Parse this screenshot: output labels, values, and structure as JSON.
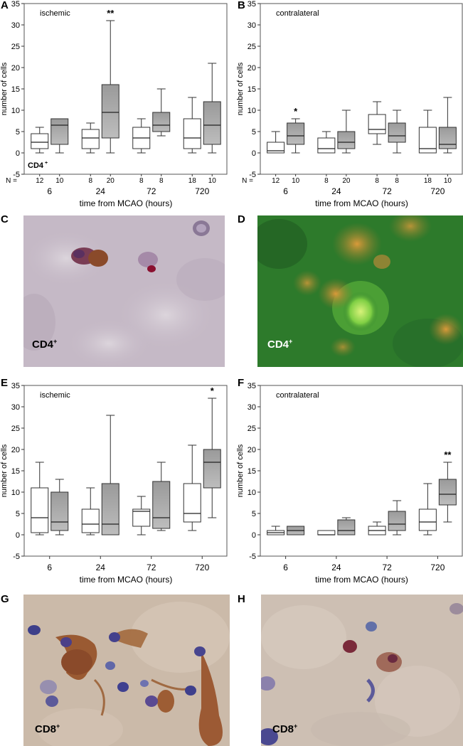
{
  "panels": {
    "A": "A",
    "B": "B",
    "C": "C",
    "D": "D",
    "E": "E",
    "F": "F",
    "G": "G",
    "H": "H"
  },
  "micrographs": {
    "C": {
      "label": "CD4",
      "sup": "+",
      "color": "#000000"
    },
    "D": {
      "label": "CD4",
      "sup": "+",
      "color": "#ffffff"
    },
    "G": {
      "label": "CD8",
      "sup": "+",
      "color": "#000000"
    },
    "H": {
      "label": "CD8",
      "sup": "+",
      "color": "#000000"
    }
  },
  "colors": {
    "open_box": "#ffffff",
    "gray_box_top": "#9a9a9a",
    "gray_box_bottom": "#bdbdbd",
    "micro_D_bg": "#2e8a2a"
  },
  "chart_data": [
    {
      "id": "A",
      "type": "box",
      "subtitle": "ischemic",
      "xlabel": "time from MCAO (hours)",
      "ylabel": "number of cells",
      "ylim": [
        -5,
        35
      ],
      "yticks": [
        -5,
        0,
        5,
        10,
        15,
        20,
        25,
        30,
        35
      ],
      "categories": [
        "6",
        "24",
        "72",
        "720"
      ],
      "inner_label": "CD4",
      "inner_label_sup": "+",
      "n_label": "N =",
      "n": [
        [
          "12",
          "10"
        ],
        [
          "8",
          "20"
        ],
        [
          "8",
          "8"
        ],
        [
          "18",
          "10"
        ]
      ],
      "significance": [
        {
          "group": 1,
          "box": 1,
          "text": "**"
        }
      ],
      "boxes": [
        [
          {
            "min": 0,
            "q1": 1,
            "median": 2.5,
            "q3": 4.5,
            "max": 6
          },
          {
            "min": 0,
            "q1": 2,
            "median": 6.5,
            "q3": 8,
            "max": 8
          }
        ],
        [
          {
            "min": 0,
            "q1": 1,
            "median": 3.5,
            "q3": 5.5,
            "max": 7
          },
          {
            "min": 0,
            "q1": 3.5,
            "median": 9.5,
            "q3": 16,
            "max": 31
          }
        ],
        [
          {
            "min": 0,
            "q1": 1,
            "median": 3.5,
            "q3": 6,
            "max": 8
          },
          {
            "min": 4,
            "q1": 5,
            "median": 6.5,
            "q3": 9.5,
            "max": 15
          }
        ],
        [
          {
            "min": 0,
            "q1": 1,
            "median": 3.5,
            "q3": 8,
            "max": 13
          },
          {
            "min": 0,
            "q1": 2,
            "median": 6.5,
            "q3": 12,
            "max": 21
          }
        ]
      ]
    },
    {
      "id": "B",
      "type": "box",
      "subtitle": "contralateral",
      "xlabel": "time from MCAO (hours)",
      "ylabel": "number of cells",
      "ylim": [
        -5,
        35
      ],
      "yticks": [
        -5,
        0,
        5,
        10,
        15,
        20,
        25,
        30,
        35
      ],
      "categories": [
        "6",
        "24",
        "72",
        "720"
      ],
      "n_label": "N =",
      "n": [
        [
          "12",
          "10"
        ],
        [
          "8",
          "20"
        ],
        [
          "8",
          "8"
        ],
        [
          "18",
          "10"
        ]
      ],
      "significance": [
        {
          "group": 0,
          "box": 1,
          "text": "*"
        }
      ],
      "boxes": [
        [
          {
            "min": 0,
            "q1": 0,
            "median": 0.5,
            "q3": 2.5,
            "max": 5
          },
          {
            "min": 0,
            "q1": 2,
            "median": 4,
            "q3": 7,
            "max": 8
          }
        ],
        [
          {
            "min": 0,
            "q1": 0,
            "median": 1,
            "q3": 3.5,
            "max": 5
          },
          {
            "min": 0,
            "q1": 1,
            "median": 2.5,
            "q3": 5,
            "max": 10
          }
        ],
        [
          {
            "min": 2,
            "q1": 4.5,
            "median": 5.5,
            "q3": 9,
            "max": 12
          },
          {
            "min": 0,
            "q1": 2.5,
            "median": 4,
            "q3": 7,
            "max": 10
          }
        ],
        [
          {
            "min": 0,
            "q1": 0,
            "median": 1,
            "q3": 6,
            "max": 10
          },
          {
            "min": 0,
            "q1": 1,
            "median": 2,
            "q3": 6,
            "max": 13
          }
        ]
      ]
    },
    {
      "id": "E",
      "type": "box",
      "subtitle": "ischemic",
      "xlabel": "time from MCAO (hours)",
      "ylabel": "number of cells",
      "ylim": [
        -5,
        35
      ],
      "yticks": [
        -5,
        0,
        5,
        10,
        15,
        20,
        25,
        30,
        35
      ],
      "categories": [
        "6",
        "24",
        "72",
        "720"
      ],
      "significance": [
        {
          "group": 3,
          "box": 1,
          "text": "*"
        }
      ],
      "boxes": [
        [
          {
            "min": 0,
            "q1": 0.5,
            "median": 4,
            "q3": 11,
            "max": 17
          },
          {
            "min": 0,
            "q1": 1,
            "median": 3,
            "q3": 10,
            "max": 13
          }
        ],
        [
          {
            "min": 0,
            "q1": 0.5,
            "median": 2.5,
            "q3": 6,
            "max": 11
          },
          {
            "min": 0,
            "q1": 0,
            "median": 2.5,
            "q3": 12,
            "max": 28
          }
        ],
        [
          {
            "min": 0,
            "q1": 2,
            "median": 5.5,
            "q3": 6,
            "max": 9
          },
          {
            "min": 1,
            "q1": 1.5,
            "median": 4,
            "q3": 12.5,
            "max": 17
          }
        ],
        [
          {
            "min": 1,
            "q1": 3,
            "median": 5,
            "q3": 12,
            "max": 21
          },
          {
            "min": 4,
            "q1": 11,
            "median": 17,
            "q3": 20,
            "max": 32
          }
        ]
      ]
    },
    {
      "id": "F",
      "type": "box",
      "subtitle": "contralateral",
      "xlabel": "time from MCAO (hours)",
      "ylabel": "number of cells",
      "ylim": [
        -5,
        35
      ],
      "yticks": [
        -5,
        0,
        5,
        10,
        15,
        20,
        25,
        30,
        35
      ],
      "categories": [
        "6",
        "24",
        "72",
        "720"
      ],
      "significance": [
        {
          "group": 3,
          "box": 1,
          "text": "**"
        }
      ],
      "boxes": [
        [
          {
            "min": 0,
            "q1": 0,
            "median": 0.5,
            "q3": 1,
            "max": 2
          },
          {
            "min": 0,
            "q1": 0,
            "median": 1,
            "q3": 2,
            "max": 2
          }
        ],
        [
          {
            "min": 0,
            "q1": 0,
            "median": 0,
            "q3": 1,
            "max": 1
          },
          {
            "min": 0,
            "q1": 0,
            "median": 1,
            "q3": 3.5,
            "max": 4
          }
        ],
        [
          {
            "min": 0,
            "q1": 0,
            "median": 1,
            "q3": 2,
            "max": 3
          },
          {
            "min": 0,
            "q1": 1,
            "median": 2.5,
            "q3": 5.5,
            "max": 8
          }
        ],
        [
          {
            "min": 0,
            "q1": 1,
            "median": 3,
            "q3": 6,
            "max": 12
          },
          {
            "min": 3,
            "q1": 7,
            "median": 9.5,
            "q3": 13,
            "max": 17
          }
        ]
      ]
    }
  ]
}
